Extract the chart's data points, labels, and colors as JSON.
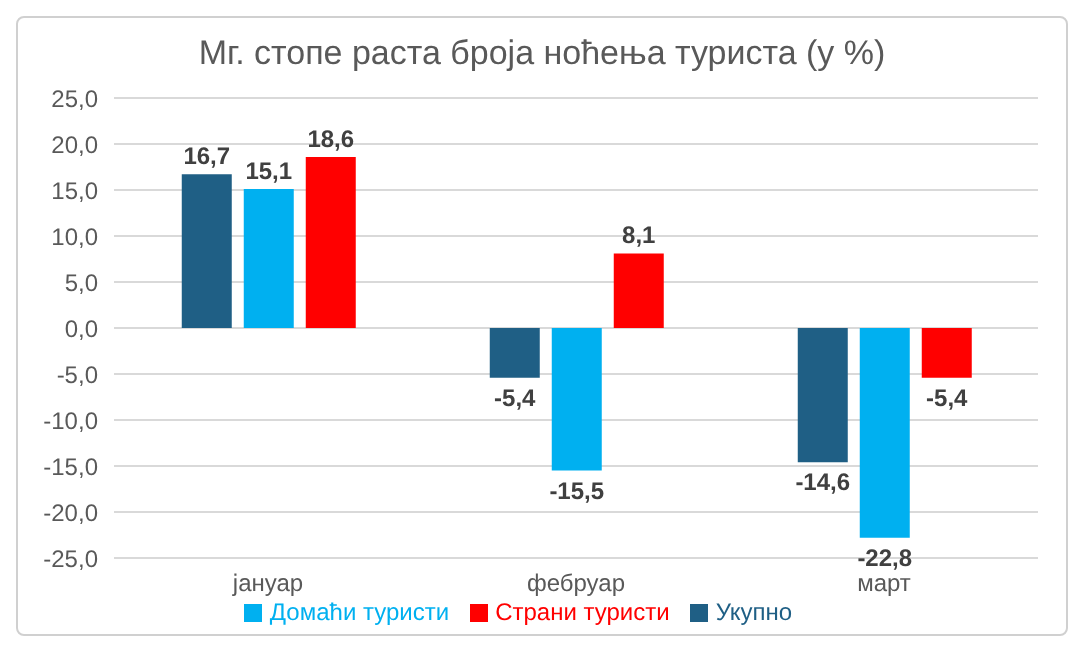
{
  "chart_data": {
    "type": "bar",
    "title": "Мг. стопе раста броја ноћења туриста (у %)",
    "categories": [
      "јануар",
      "фебруар",
      "март"
    ],
    "series": [
      {
        "name": "Укупно",
        "color": "#1f5f85",
        "values": [
          16.7,
          -5.4,
          -14.6
        ],
        "value_labels": [
          "16,7",
          "-5,4",
          "-14,6"
        ]
      },
      {
        "name": "Домаћи туристи",
        "color": "#00b0f0",
        "values": [
          15.1,
          -15.5,
          -22.8
        ],
        "value_labels": [
          "15,1",
          "-15,5",
          "-22,8"
        ]
      },
      {
        "name": "Страни туристи",
        "color": "#ff0000",
        "values": [
          18.6,
          8.1,
          -5.4
        ],
        "value_labels": [
          "18,6",
          "8,1",
          "-5,4"
        ]
      }
    ],
    "ylim": [
      -25,
      25
    ],
    "yticks": [
      {
        "value": -25,
        "label": "-25,0"
      },
      {
        "value": -20,
        "label": "-20,0"
      },
      {
        "value": -15,
        "label": "-15,0"
      },
      {
        "value": -10,
        "label": "-10,0"
      },
      {
        "value": -5,
        "label": "-5,0"
      },
      {
        "value": 0,
        "label": "0,0"
      },
      {
        "value": 5,
        "label": "5,0"
      },
      {
        "value": 10,
        "label": "10,0"
      },
      {
        "value": 15,
        "label": "15,0"
      },
      {
        "value": 20,
        "label": "20,0"
      },
      {
        "value": 25,
        "label": "25,0"
      }
    ],
    "grid": "y",
    "legend": "bottom"
  }
}
